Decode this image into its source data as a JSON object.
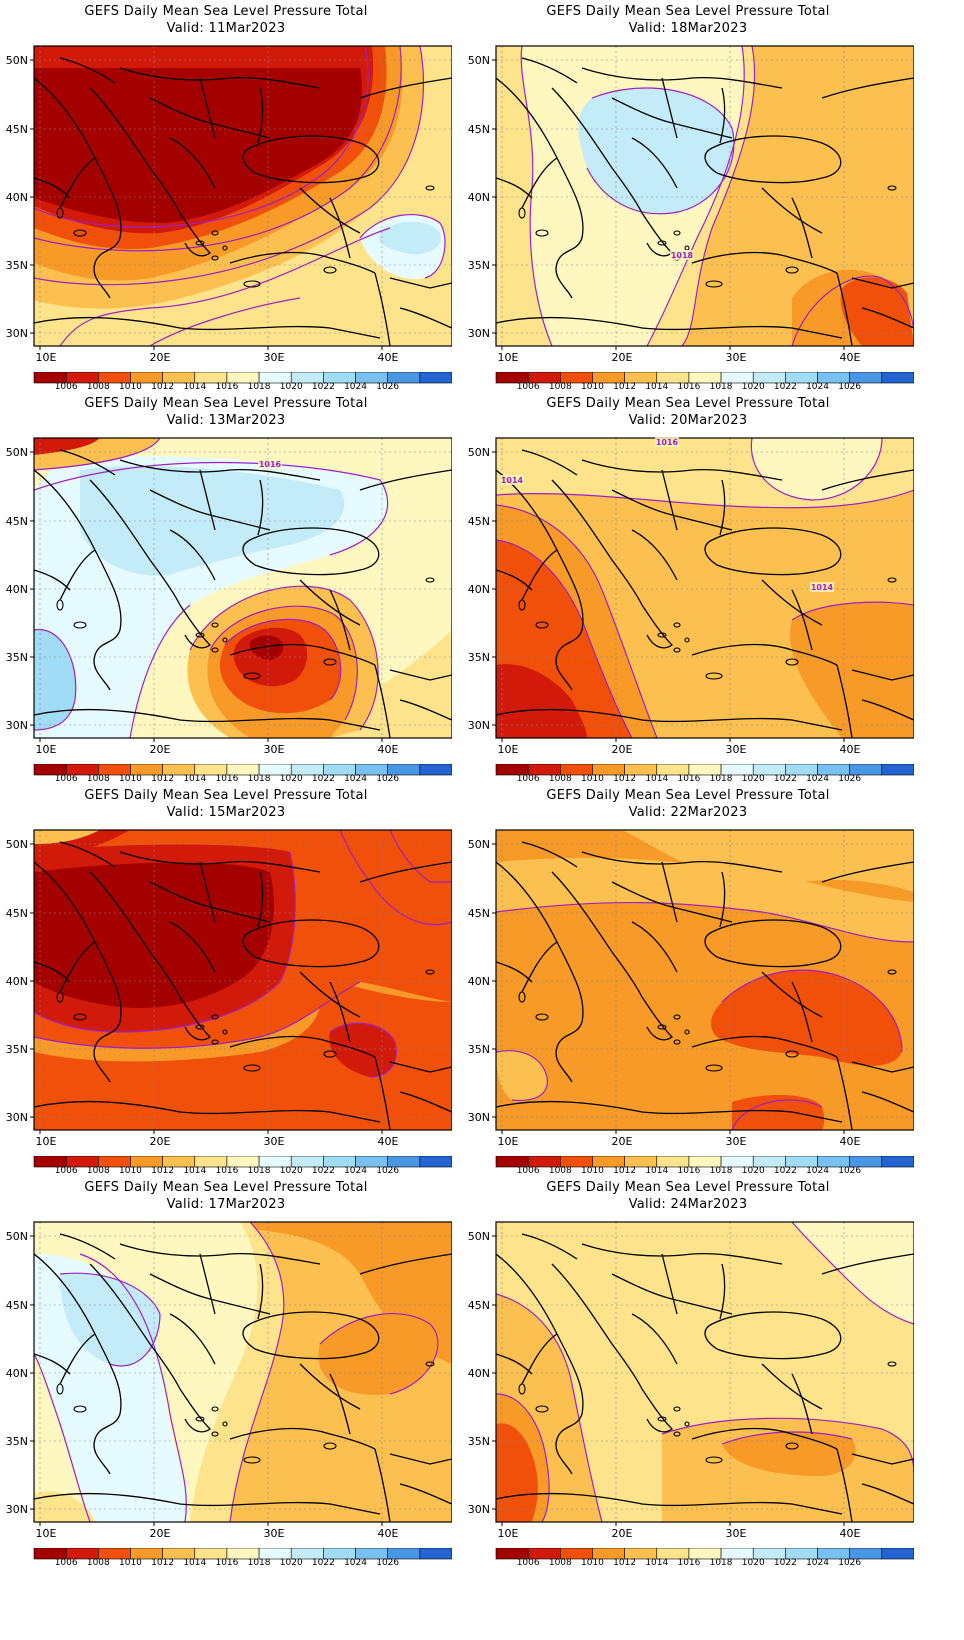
{
  "panels": [
    {
      "id": "p1",
      "title": "GEFS Daily Mean Sea Level Pressure Total",
      "valid": "Valid: 11Mar2023"
    },
    {
      "id": "p2",
      "title": "GEFS Daily Mean Sea Level Pressure Total",
      "valid": "Valid: 18Mar2023"
    },
    {
      "id": "p3",
      "title": "GEFS Daily Mean Sea Level Pressure Total",
      "valid": "Valid: 13Mar2023"
    },
    {
      "id": "p4",
      "title": "GEFS Daily Mean Sea Level Pressure Total",
      "valid": "Valid: 20Mar2023"
    },
    {
      "id": "p5",
      "title": "GEFS Daily Mean Sea Level Pressure Total",
      "valid": "Valid: 15Mar2023"
    },
    {
      "id": "p6",
      "title": "GEFS Daily Mean Sea Level Pressure Total",
      "valid": "Valid: 22Mar2023"
    },
    {
      "id": "p7",
      "title": "GEFS Daily Mean Sea Level Pressure Total",
      "valid": "Valid: 17Mar2023"
    },
    {
      "id": "p8",
      "title": "GEFS Daily Mean Sea Level Pressure Total",
      "valid": "Valid: 24Mar2023"
    }
  ],
  "axes": {
    "lat_labels": [
      "50N",
      "45N",
      "40N",
      "35N",
      "30N"
    ],
    "lon_labels": [
      "10E",
      "20E",
      "30E",
      "40E"
    ]
  },
  "colorbar": {
    "labels": [
      "1006",
      "1008",
      "1010",
      "1012",
      "1014",
      "1016",
      "1018",
      "1020",
      "1022",
      "1024",
      "1026"
    ],
    "colors": [
      "#a50000",
      "#d21a0a",
      "#f0500a",
      "#f79a28",
      "#fbc050",
      "#fde48c",
      "#fff7c0",
      "#e6fbff",
      "#c4ecf8",
      "#a0dcf5",
      "#78c0f0",
      "#4a96e6",
      "#2464d2"
    ]
  },
  "contour_labels": {
    "p2": "1018",
    "p3": "1016",
    "p4": [
      "1016",
      "1014",
      "1014"
    ]
  }
}
